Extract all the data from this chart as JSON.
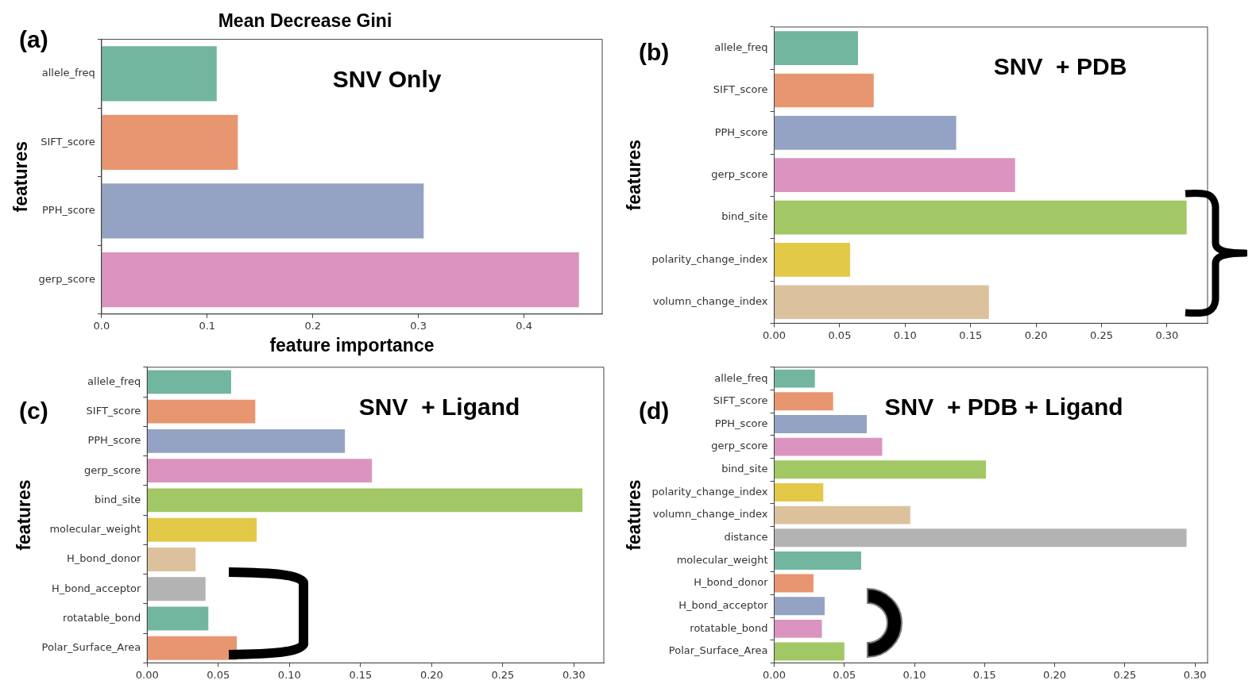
{
  "chart_data": [
    {
      "type": "bar",
      "orientation": "horizontal",
      "title": "Mean Decrease Gini",
      "xlabel": "feature importance",
      "ylabel": "features",
      "annotations": [
        "(a)",
        "SNV Only"
      ],
      "categories": [
        "allele_freq",
        "SIFT_score",
        "PPH_score",
        "gerp_score"
      ],
      "values": [
        0.109,
        0.129,
        0.305,
        0.452
      ],
      "colors": [
        "#72b6a0",
        "#e8966f",
        "#94a3c3",
        "#db94bf"
      ],
      "xlim": [
        0,
        0.474
      ],
      "xticks": [
        {
          "value": 0,
          "label": "0.0"
        },
        0.1,
        0.2,
        0.3,
        0.4
      ],
      "grid": false,
      "legend": false
    },
    {
      "type": "bar",
      "orientation": "horizontal",
      "ylabel": "features",
      "annotations": [
        "(b)",
        "SNV  + PDB"
      ],
      "categories": [
        "allele_freq",
        "SIFT_score",
        "PPH_score",
        "gerp_score",
        "bind_site",
        "polarity_change_index",
        "volumn_change_index"
      ],
      "values": [
        0.064,
        0.076,
        0.139,
        0.184,
        0.315,
        0.058,
        0.164
      ],
      "colors": [
        "#72b6a0",
        "#e8966f",
        "#94a3c3",
        "#db94bf",
        "#a1c864",
        "#e3c948",
        "#dbc29d"
      ],
      "xlim": [
        0,
        0.331
      ],
      "xticks": [
        {
          "value": 0,
          "label": "0.00"
        },
        0.05,
        {
          "value": 0.1,
          "label": "0.10"
        },
        0.15,
        {
          "value": 0.2,
          "label": "0.20"
        },
        0.25,
        {
          "value": 0.3,
          "label": "0.30"
        }
      ],
      "grid": false,
      "legend": false
    },
    {
      "type": "bar",
      "orientation": "horizontal",
      "ylabel": "features",
      "annotations": [
        "(c)",
        "SNV  + Ligand"
      ],
      "categories": [
        "allele_freq",
        "SIFT_score",
        "PPH_score",
        "gerp_score",
        "bind_site",
        "molecular_weight",
        "H_bond_donor",
        "H_bond_acceptor",
        "rotatable_bond",
        "Polar_Surface_Area"
      ],
      "values": [
        0.059,
        0.076,
        0.139,
        0.158,
        0.306,
        0.077,
        0.034,
        0.041,
        0.043,
        0.063
      ],
      "colors": [
        "#72b6a0",
        "#e8966f",
        "#94a3c3",
        "#db94bf",
        "#a1c864",
        "#e3c948",
        "#dbc29d",
        "#b3b3b3",
        "#72b6a0",
        "#e8966f"
      ],
      "xlim": [
        0,
        0.321
      ],
      "xticks": [
        {
          "value": 0,
          "label": "0.00"
        },
        0.05,
        {
          "value": 0.1,
          "label": "0.10"
        },
        0.15,
        {
          "value": 0.2,
          "label": "0.20"
        },
        0.25,
        {
          "value": 0.3,
          "label": "0.30"
        }
      ],
      "grid": false,
      "legend": false
    },
    {
      "type": "bar",
      "orientation": "horizontal",
      "ylabel": "features",
      "annotations": [
        "(d)",
        "SNV  + PDB + Ligand"
      ],
      "categories": [
        "allele_freq",
        "SIFT_score",
        "PPH_score",
        "gerp_score",
        "bind_site",
        "polarity_change_index",
        "volumn_change_index",
        "distance",
        "molecular_weight",
        "H_bond_donor",
        "H_bond_acceptor",
        "rotatable_bond",
        "Polar_Surface_Area"
      ],
      "values": [
        0.029,
        0.042,
        0.066,
        0.077,
        0.151,
        0.035,
        0.097,
        0.294,
        0.062,
        0.028,
        0.036,
        0.034,
        0.05
      ],
      "colors": [
        "#72b6a0",
        "#e8966f",
        "#94a3c3",
        "#db94bf",
        "#a1c864",
        "#e3c948",
        "#dbc29d",
        "#b3b3b3",
        "#72b6a0",
        "#e8966f",
        "#94a3c3",
        "#db94bf",
        "#a1c864"
      ],
      "xlim": [
        0,
        0.309
      ],
      "xticks": [
        {
          "value": 0,
          "label": "0.00"
        },
        0.05,
        {
          "value": 0.1,
          "label": "0.10"
        },
        0.15,
        {
          "value": 0.2,
          "label": "0.20"
        },
        0.25,
        {
          "value": 0.3,
          "label": "0.30"
        }
      ],
      "grid": false,
      "legend": false
    }
  ]
}
